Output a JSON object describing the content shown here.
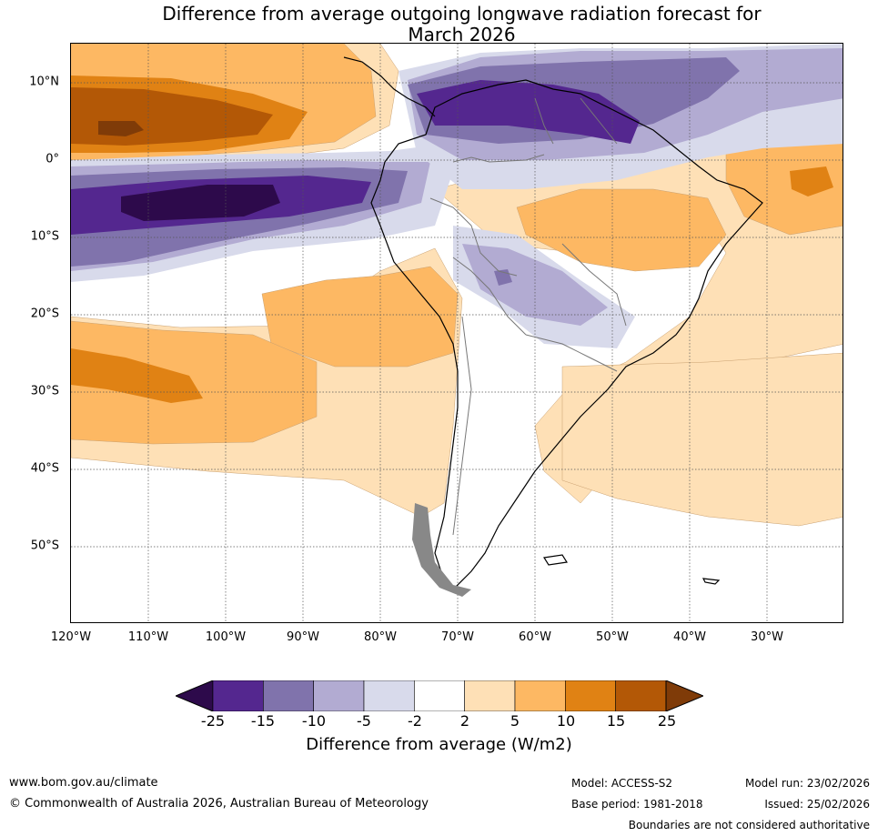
{
  "title": {
    "line1": "Difference from average outgoing longwave radiation forecast for",
    "line2": "March 2026"
  },
  "map": {
    "region": "South America",
    "lat_labels": [
      "10°N",
      "0°",
      "10°S",
      "20°S",
      "30°S",
      "40°S",
      "50°S"
    ],
    "lon_labels": [
      "120°W",
      "110°W",
      "100°W",
      "90°W",
      "80°W",
      "70°W",
      "60°W",
      "50°W",
      "40°W",
      "30°W"
    ]
  },
  "colorbar": {
    "ticks": [
      "-25",
      "-15",
      "-10",
      "-5",
      "-2",
      "2",
      "5",
      "10",
      "15",
      "25"
    ],
    "colors": [
      "#2d0a4b",
      "#54278f",
      "#8073ac",
      "#b2abd2",
      "#d8daeb",
      "#ffffff",
      "#fee0b6",
      "#fdb863",
      "#e08214",
      "#b35806",
      "#7f3b08"
    ],
    "label": "Difference from average (W/m2)"
  },
  "footer": {
    "website": "www.bom.gov.au/climate",
    "copyright": "© Commonwealth of Australia 2026, Australian Bureau of Meteorology",
    "model": "Model: ACCESS-S2",
    "base_period": "Base period: 1981-2018",
    "model_run": "Model run: 23/02/2026",
    "issued": "Issued: 25/02/2026",
    "disclaimer": "Boundaries are not considered authoritative"
  }
}
